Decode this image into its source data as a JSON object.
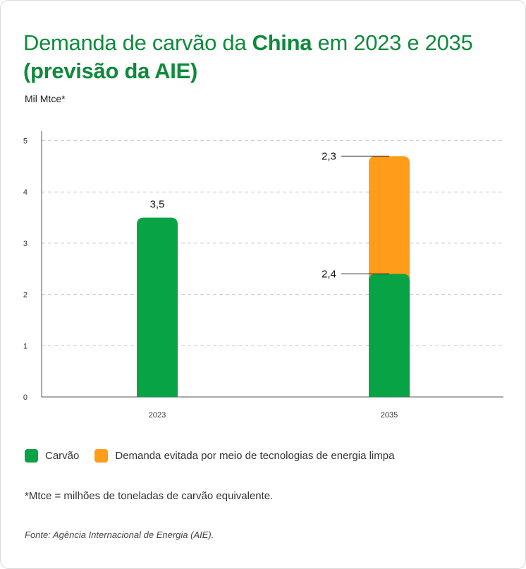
{
  "title": {
    "part1": "Demanda de carvão da ",
    "bold1": "China",
    "part2": " em 2023 e 2035 ",
    "bold2": "(previsão da AIE)"
  },
  "unit_label": "Mil Mtce*",
  "colors": {
    "carvao": "#08a345",
    "evitada": "#ff9c1a",
    "title": "#0f8a3c"
  },
  "chart_data": {
    "type": "bar",
    "stacked": true,
    "categories": [
      "2023",
      "2035"
    ],
    "series": [
      {
        "name": "Carvão",
        "values": [
          3.5,
          2.4
        ],
        "labels": [
          "3,5",
          "2,4"
        ]
      },
      {
        "name": "Demanda evitada por meio de tecnologias de energia limpa",
        "values": [
          0,
          2.3
        ],
        "labels": [
          "",
          "2,3"
        ]
      }
    ],
    "ylim": [
      0,
      5
    ],
    "yticks": [
      0,
      1,
      2,
      3,
      4,
      5
    ],
    "ylabel": "Mil Mtce*",
    "grid": true,
    "legend": "bottom"
  },
  "legend": {
    "items": [
      {
        "label": "Carvão"
      },
      {
        "label": "Demanda evitada por meio de tecnologias de energia limpa"
      }
    ]
  },
  "footnote": "*Mtce = milhões de toneladas de carvão equivalente.",
  "source": "Fonte: Agência Internacional de Energia (AIE)."
}
